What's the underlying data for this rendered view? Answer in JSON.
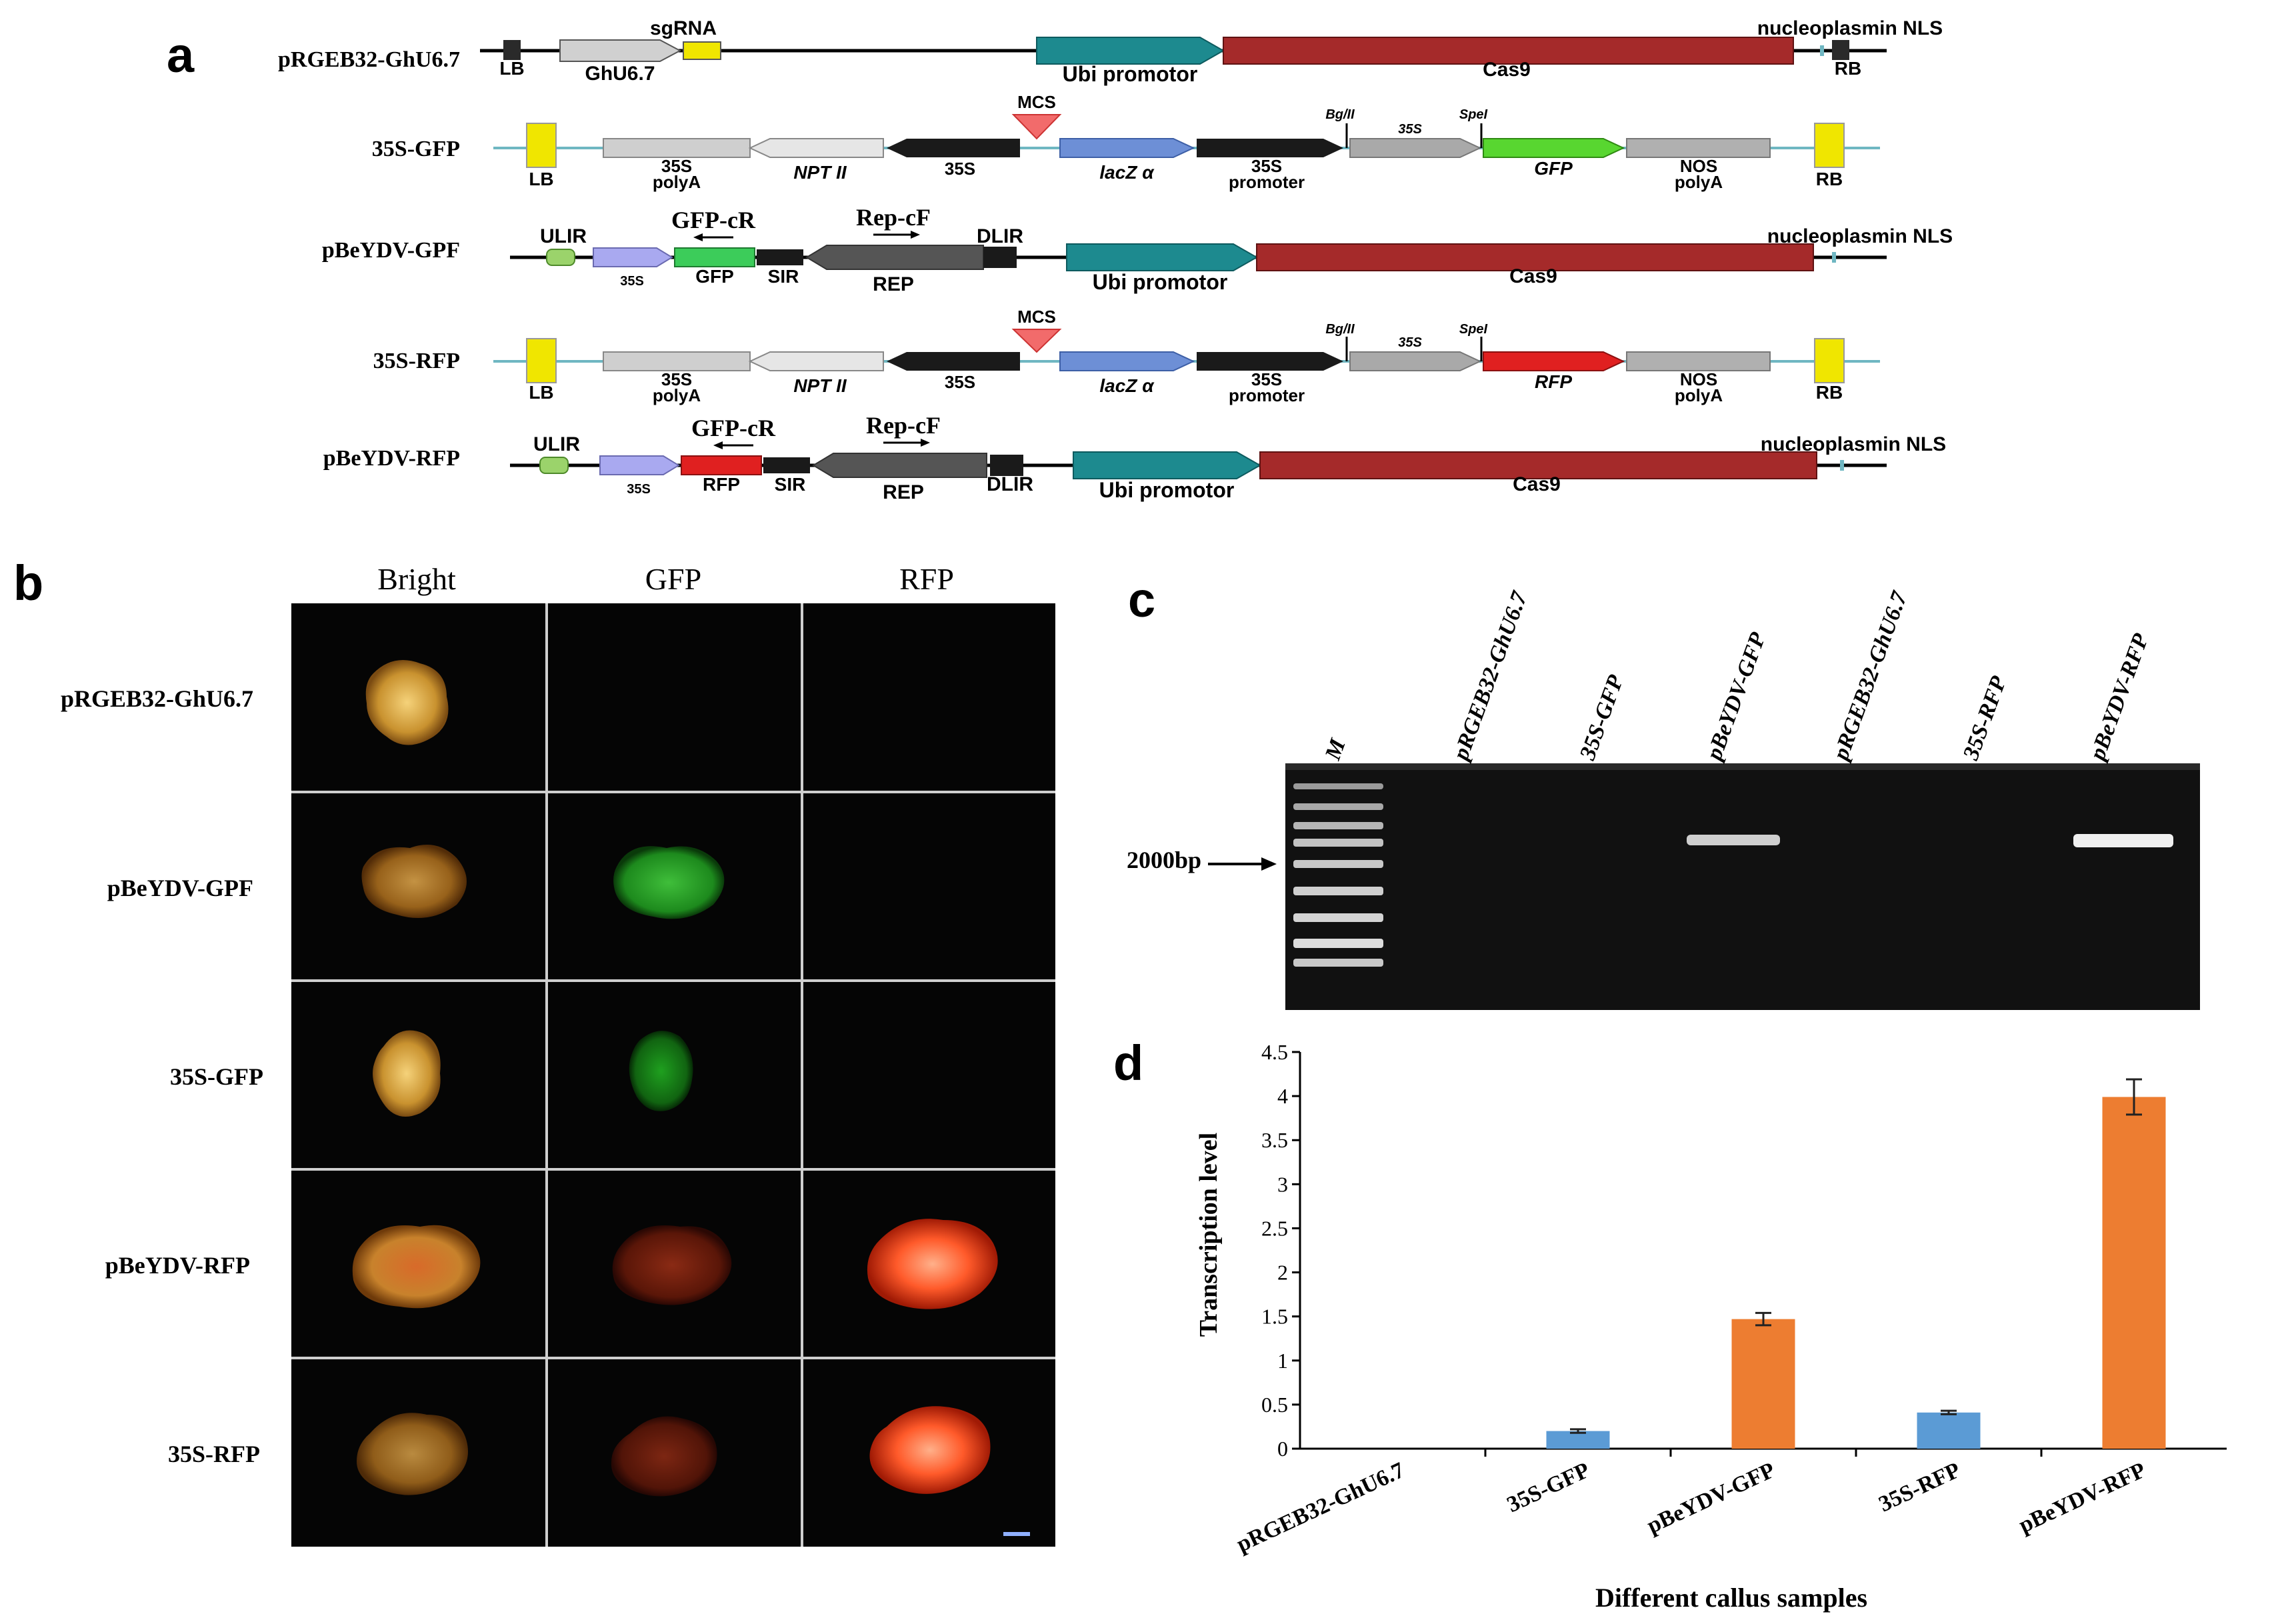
{
  "panel_labels": {
    "a": "a",
    "b": "b",
    "c": "c",
    "d": "d"
  },
  "constructs": [
    {
      "name": "pRGEB32-GhU6.7",
      "parts": {
        "lb": "LB",
        "sgrna": "sgRNA",
        "ghu6": "GhU6.7",
        "ubi": "Ubi promotor",
        "cas9": "Cas9",
        "nls": "nucleoplasmin NLS",
        "rb": "RB"
      }
    },
    {
      "name": "35S-GFP",
      "parts": {
        "lb": "LB",
        "polyA35s": "35S",
        "polyA35s_b": "polyA",
        "nptii": "NPT II",
        "s35": "35S",
        "mcs": "MCS",
        "lacz": "lacZ α",
        "prom35s": "35S",
        "prom35s_b": "promoter",
        "bglii": "Bg/II",
        "s35b": "35S",
        "spei": "SpeI",
        "reporter": "GFP",
        "nos": "NOS",
        "nos_b": "polyA",
        "rb": "RB"
      }
    },
    {
      "name": "pBeYDV-GPF",
      "parts": {
        "ulir": "ULIR",
        "p35s": "35S",
        "reporter": "GFP",
        "sir": "SIR",
        "primer_r": "GFP-cR",
        "primer_f": "Rep-cF",
        "rep": "REP",
        "dlir": "DLIR",
        "ubi": "Ubi promotor",
        "cas9": "Cas9",
        "nls": "nucleoplasmin NLS"
      }
    },
    {
      "name": "35S-RFP",
      "parts": {
        "lb": "LB",
        "polyA35s": "35S",
        "polyA35s_b": "polyA",
        "nptii": "NPT II",
        "s35": "35S",
        "mcs": "MCS",
        "lacz": "lacZ α",
        "prom35s": "35S",
        "prom35s_b": "promoter",
        "bglii": "Bg/II",
        "s35b": "35S",
        "spei": "SpeI",
        "reporter": "RFP",
        "nos": "NOS",
        "nos_b": "polyA",
        "rb": "RB"
      }
    },
    {
      "name": "pBeYDV-RFP",
      "parts": {
        "ulir": "ULIR",
        "p35s": "35S",
        "reporter": "RFP",
        "sir": "SIR",
        "primer_r": "GFP-cR",
        "primer_f": "Rep-cF",
        "rep": "REP",
        "dlir": "DLIR",
        "ubi": "Ubi promotor",
        "cas9": "Cas9",
        "nls": "nucleoplasmin NLS"
      }
    }
  ],
  "microscopy": {
    "columns": [
      "Bright",
      "GFP",
      "RFP"
    ],
    "rows": [
      "pRGEB32-GhU6.7",
      "pBeYDV-GPF",
      "35S-GFP",
      "pBeYDV-RFP",
      "35S-RFP"
    ]
  },
  "gel": {
    "lanes": [
      "M",
      "pRGEB32-GhU6.7",
      "35S-GFP",
      "pBeYDV-GFP",
      "pRGEB32-GhU6.7",
      "35S-RFP",
      "pBeYDV-RFP"
    ],
    "marker_label": "2000bp"
  },
  "chart_data": {
    "type": "bar",
    "categories": [
      "pRGEB32-GhU6.7",
      "35S-GFP",
      "pBeYDV-GFP",
      "35S-RFP",
      "pBeYDV-RFP"
    ],
    "values": [
      0,
      0.2,
      1.47,
      0.41,
      3.99
    ],
    "errors": [
      0,
      0.02,
      0.07,
      0.02,
      0.2
    ],
    "bar_colors": [
      "#5b9bd5",
      "#5b9bd5",
      "#ed7d31",
      "#5b9bd5",
      "#ed7d31"
    ],
    "ylabel": "Transcription level",
    "xlabel": "Different callus samples",
    "ylim": [
      0,
      4.5
    ],
    "yticks": [
      "0",
      "0.5",
      "1",
      "1.5",
      "2",
      "2.5",
      "3",
      "3.5",
      "4",
      "4.5"
    ],
    "grid": false
  },
  "colors": {
    "black_box": "#1a1a1a",
    "gray_arrow": "#bdbdbd",
    "teal": "#1d8a8f",
    "cas9": "#a52a2a",
    "yellow": "#f0e600",
    "lacz_blue": "#6d8fd6",
    "green": "#58d630",
    "red": "#e02020",
    "lavender": "#a9a9f0",
    "light_green": "#9bd36b",
    "backbone_cyan": "#6fb7c2"
  }
}
